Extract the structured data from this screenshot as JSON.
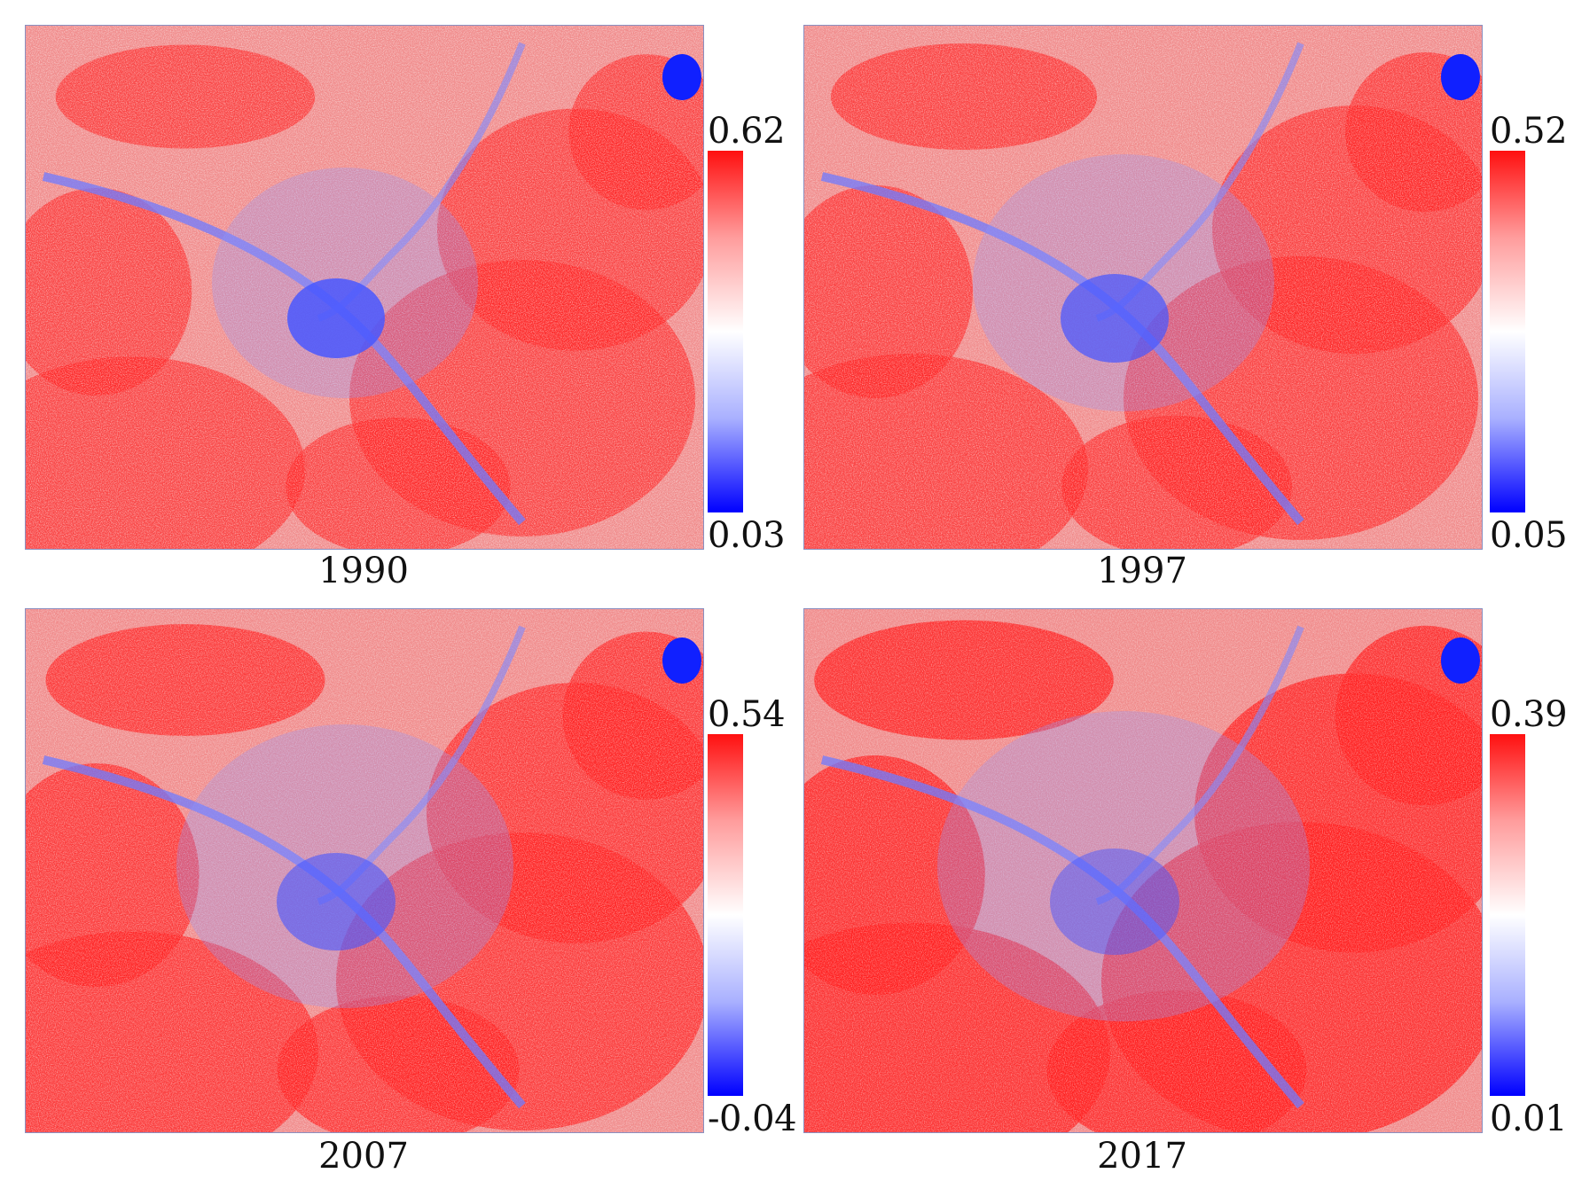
{
  "panels": [
    {
      "year": "1990",
      "cbar_max": "0.62",
      "cbar_min": "0.03"
    },
    {
      "year": "1997",
      "cbar_max": "0.52",
      "cbar_min": "0.05"
    },
    {
      "year": "2007",
      "cbar_max": "0.54",
      "cbar_min": "-0.04"
    },
    {
      "year": "2017",
      "cbar_max": "0.39",
      "cbar_min": "0.01"
    }
  ],
  "colors": {
    "high": "#ff0000",
    "mid": "#ffffff",
    "low": "#0000ff"
  }
}
